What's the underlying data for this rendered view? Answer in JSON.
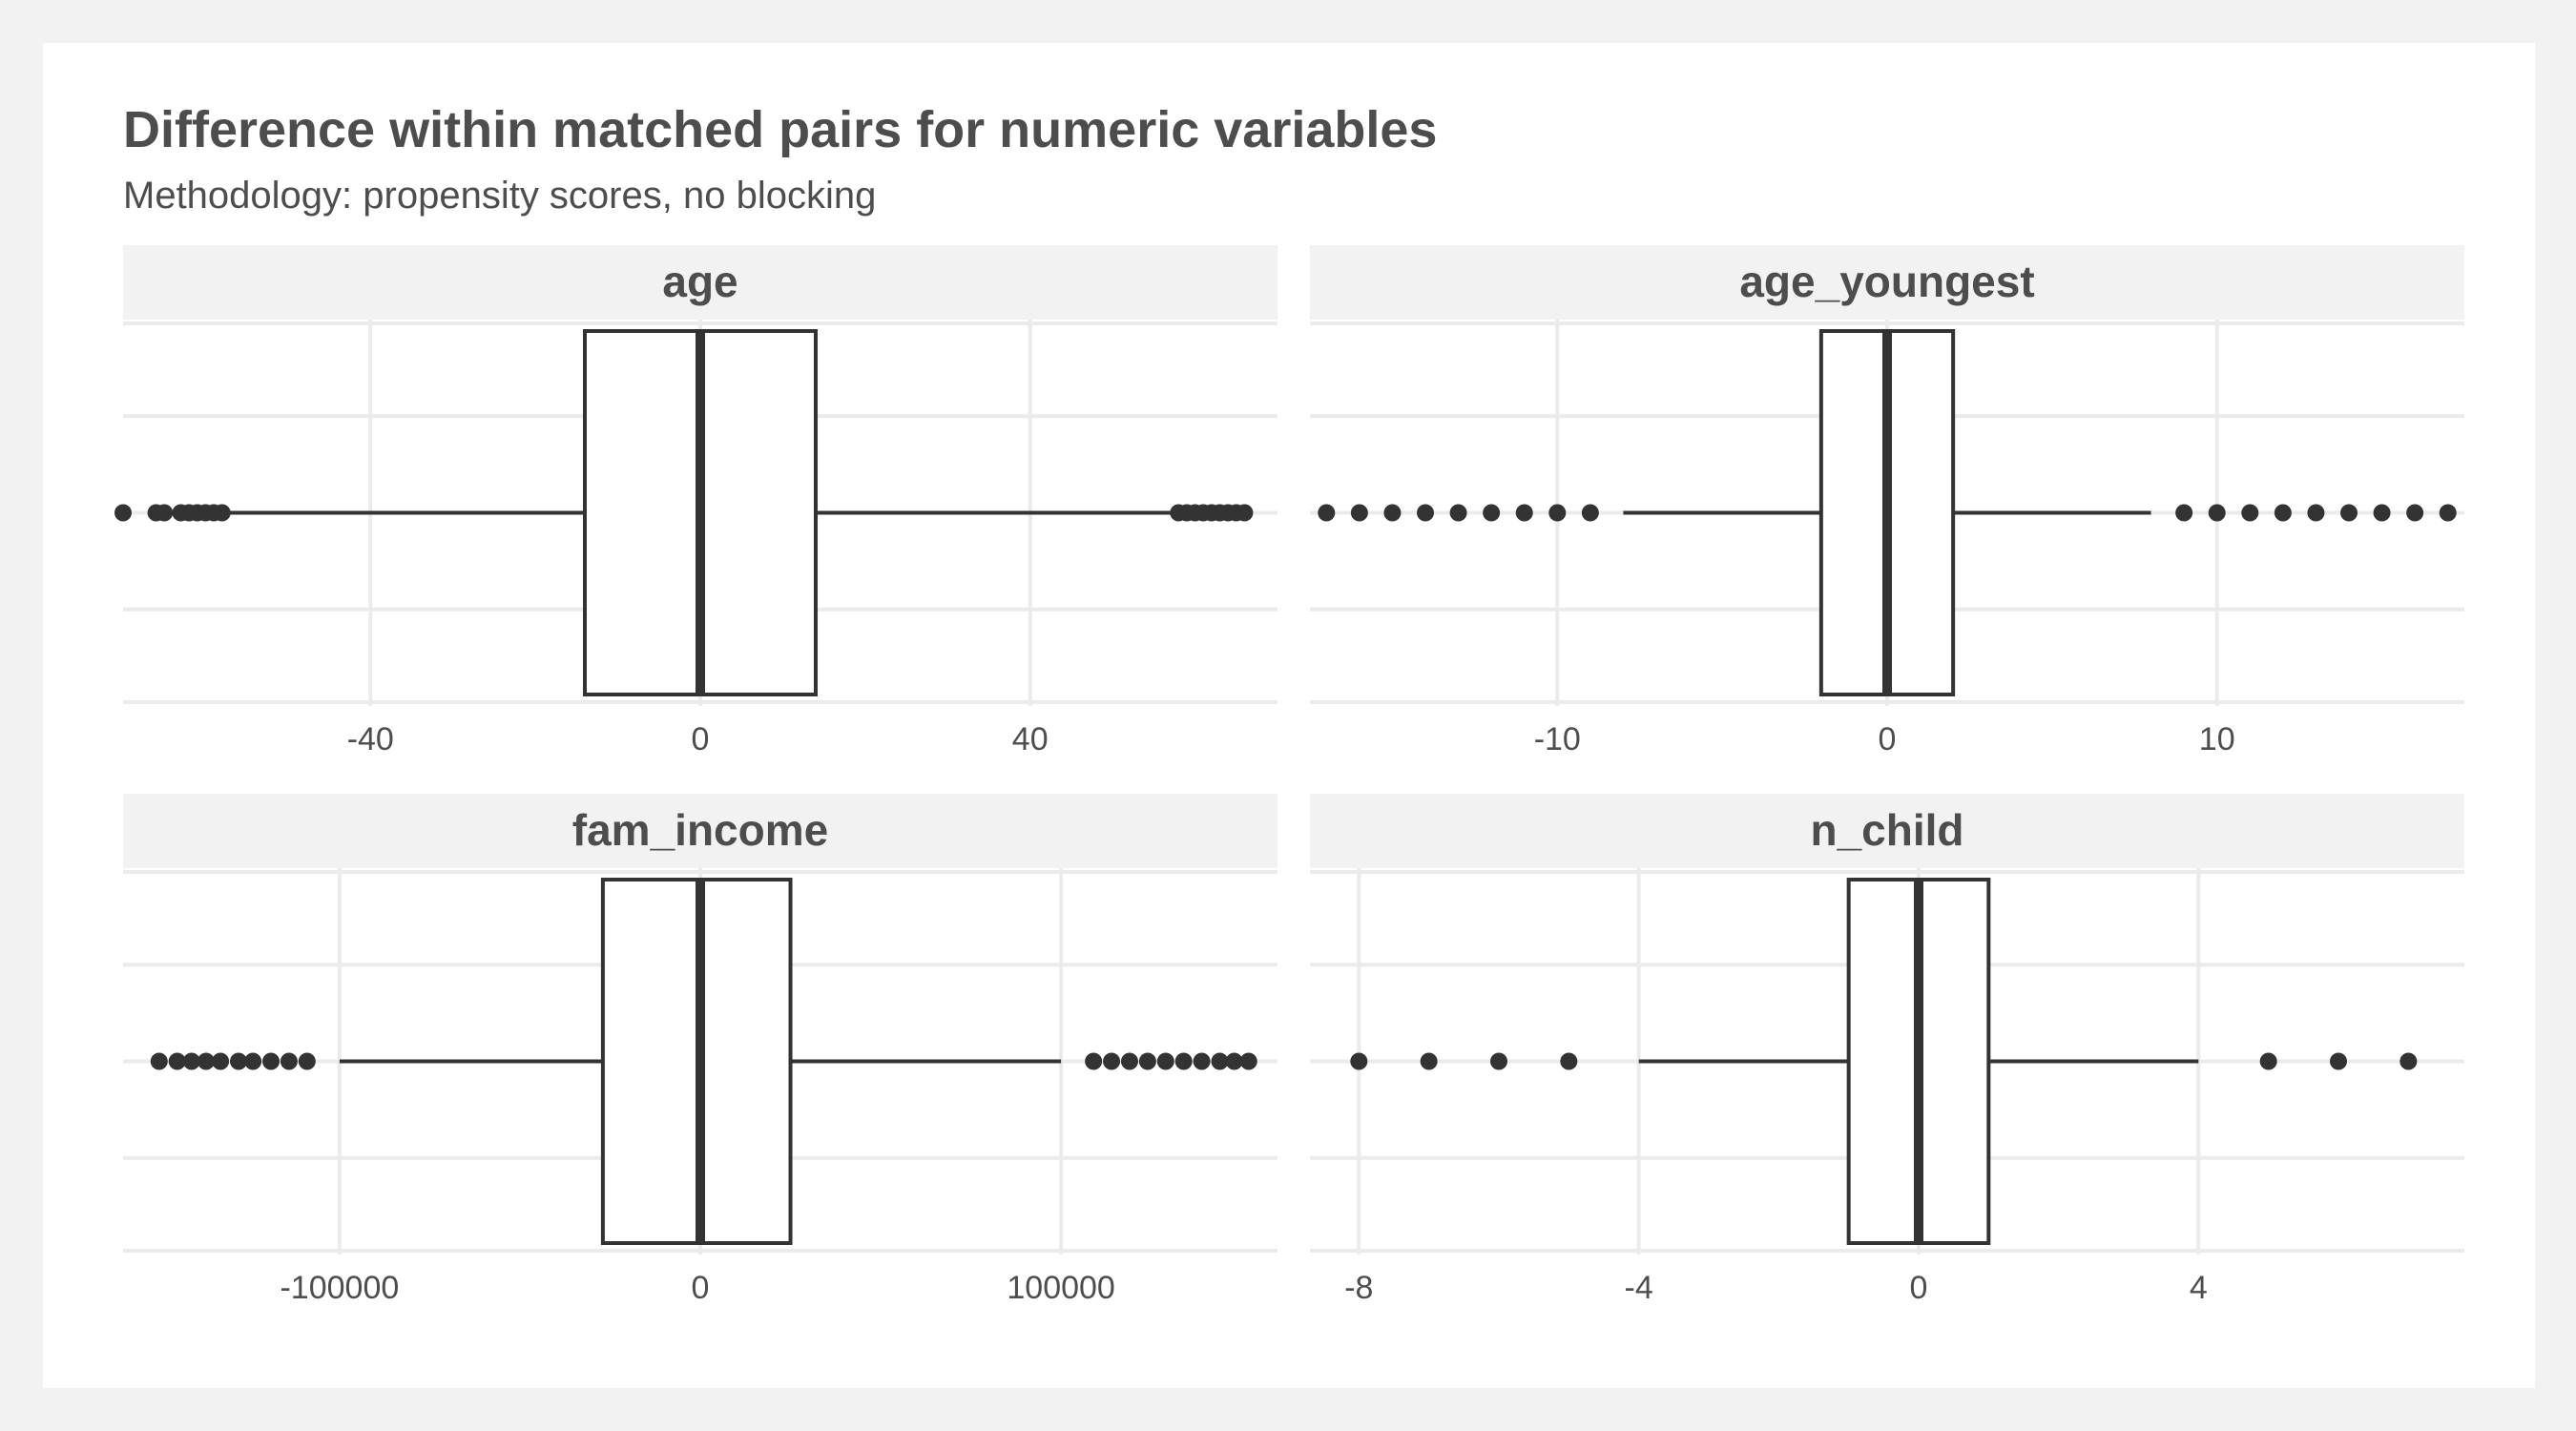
{
  "chart_data": {
    "type": "boxplot",
    "title": "Difference within matched pairs for numeric variables",
    "subtitle": "Methodology: propensity scores, no blocking",
    "xlabel": "",
    "ylabel": "",
    "grid": true,
    "facets": [
      {
        "name": "age",
        "xlim": [
          -70,
          70
        ],
        "ticks": [
          -40,
          0,
          40
        ],
        "tick_labels": [
          "-40",
          "0",
          "40"
        ],
        "box": {
          "whisker_low": -57,
          "q1": -14,
          "median": 0,
          "q3": 14,
          "whisker_high": 57
        },
        "outliers": [
          -70,
          -66,
          -65,
          -63,
          -62,
          -61,
          -60,
          -59,
          -58,
          58,
          59,
          60,
          61,
          62,
          63,
          64,
          65,
          66
        ]
      },
      {
        "name": "age_youngest",
        "xlim": [
          -17.5,
          17.5
        ],
        "ticks": [
          -10,
          0,
          10
        ],
        "tick_labels": [
          "-10",
          "0",
          "10"
        ],
        "box": {
          "whisker_low": -8,
          "q1": -2,
          "median": 0,
          "q3": 2,
          "whisker_high": 8
        },
        "outliers": [
          -17,
          -16,
          -15,
          -14,
          -13,
          -12,
          -11,
          -10,
          -9,
          9,
          10,
          11,
          12,
          13,
          14,
          15,
          16,
          17
        ]
      },
      {
        "name": "fam_income",
        "xlim": [
          -160000,
          160000
        ],
        "ticks": [
          -100000,
          0,
          100000
        ],
        "tick_labels": [
          "-100000",
          "0",
          "100000"
        ],
        "box": {
          "whisker_low": -100000,
          "q1": -27000,
          "median": 0,
          "q3": 25000,
          "whisker_high": 100000
        },
        "outliers": [
          -150000,
          -145000,
          -141000,
          -137000,
          -133000,
          -128000,
          -124000,
          -119000,
          -114000,
          -109000,
          109000,
          114000,
          119000,
          124000,
          129000,
          134000,
          139000,
          144000,
          148000,
          152000
        ]
      },
      {
        "name": "n_child",
        "xlim": [
          -8.7,
          7.8
        ],
        "ticks": [
          -8,
          -4,
          0,
          4
        ],
        "tick_labels": [
          "-8",
          "-4",
          "0",
          "4"
        ],
        "box": {
          "whisker_low": -4,
          "q1": -1,
          "median": 0,
          "q3": 1,
          "whisker_high": 4
        },
        "outliers": [
          -8,
          -7,
          -6,
          -5,
          5,
          6,
          7
        ]
      }
    ]
  },
  "colors": {
    "background": "#f2f2f2",
    "panel": "#ffffff",
    "strip": "#f2f2f2",
    "grid": "#ebebeb",
    "ink": "#333333",
    "text": "#4d4d4d"
  }
}
